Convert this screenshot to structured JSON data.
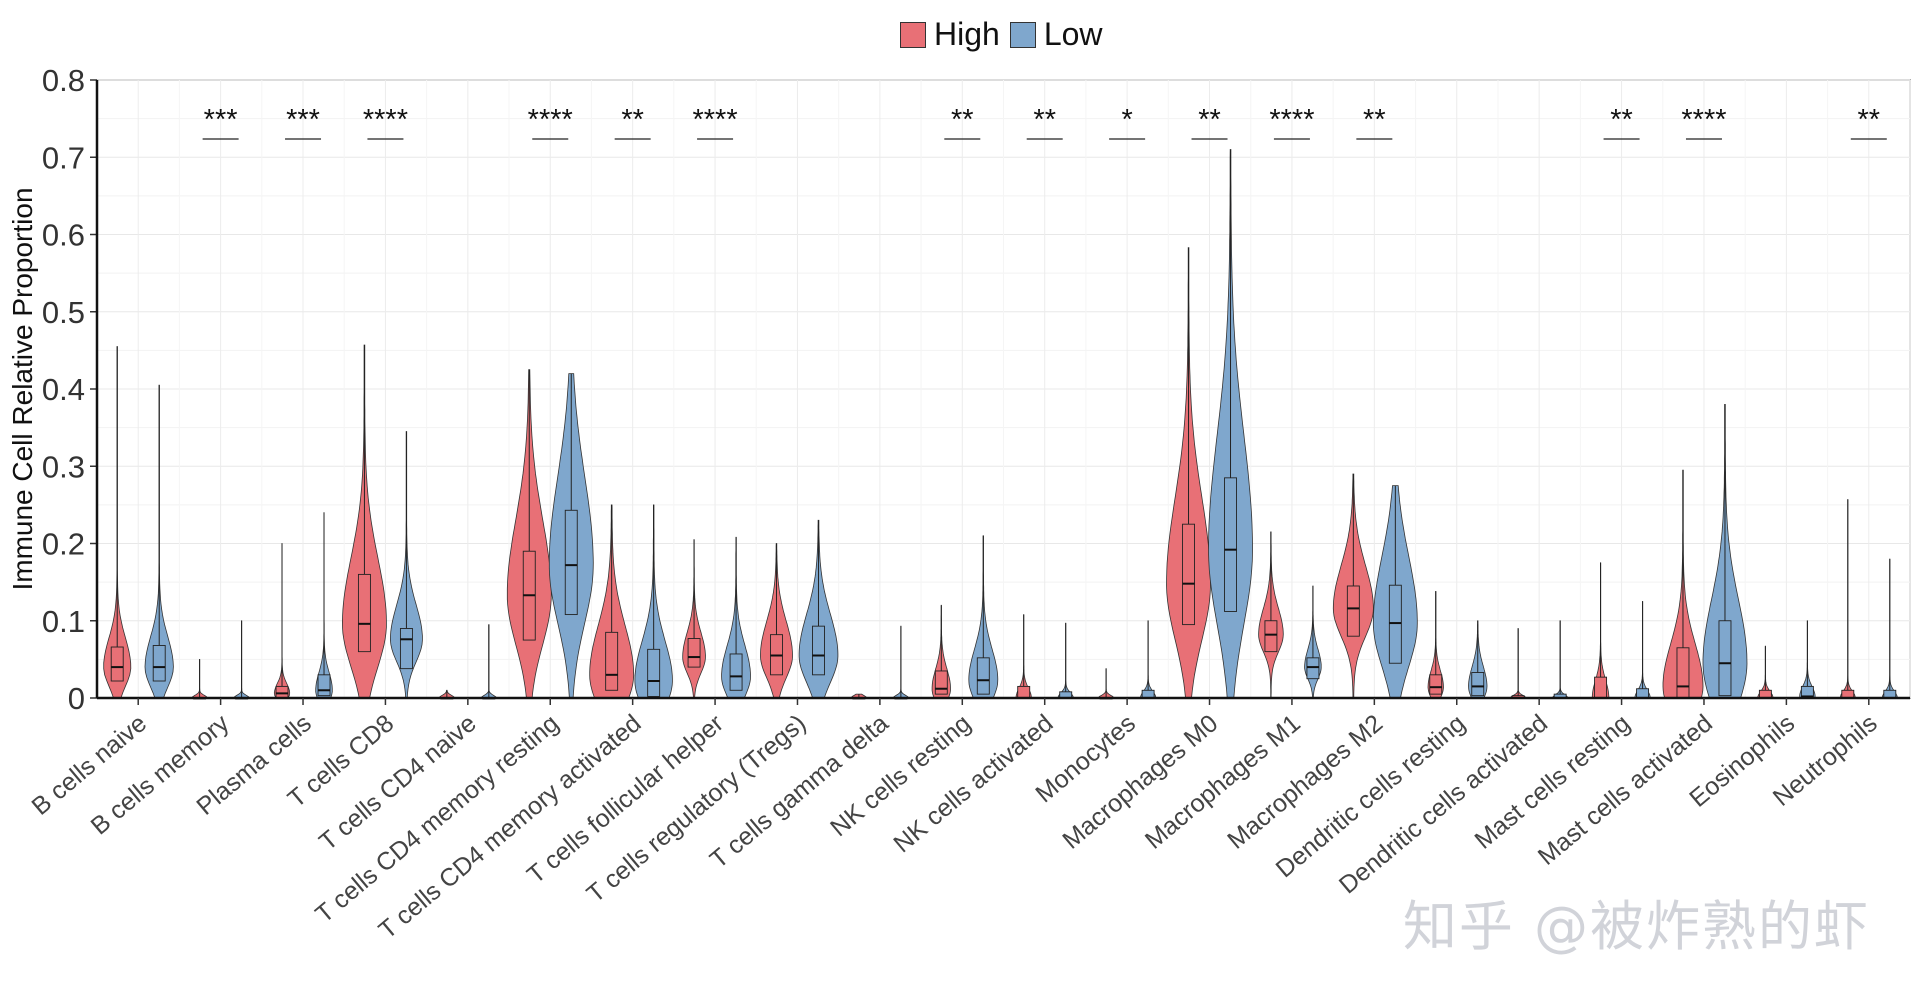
{
  "chart_data": {
    "type": "violin",
    "ylabel": "Immune Cell Relative Proportion",
    "ylim": [
      0,
      0.8
    ],
    "yticks": [
      "0",
      "0.1",
      "0.2",
      "0.3",
      "0.4",
      "0.5",
      "0.6",
      "0.7",
      "0.8"
    ],
    "legend": {
      "position": "top-center",
      "entries": [
        {
          "name": "High",
          "color": "#e87076"
        },
        {
          "name": "Low",
          "color": "#7fa7cd"
        }
      ]
    },
    "categories": [
      "B cells naive",
      "B cells memory",
      "Plasma cells",
      "T cells CD8",
      "T cells CD4 naive",
      "T cells CD4 memory resting",
      "T cells CD4 memory activated",
      "T cells follicular helper",
      "T cells regulatory (Tregs)",
      "T cells gamma delta",
      "NK cells resting",
      "NK cells activated",
      "Monocytes",
      "Macrophages M0",
      "Macrophages M1",
      "Macrophages M2",
      "Dendritic cells resting",
      "Dendritic cells activated",
      "Mast cells resting",
      "Mast cells activated",
      "Eosinophils",
      "Neutrophils"
    ],
    "significance": [
      "",
      "***",
      "***",
      "****",
      "",
      "****",
      "**",
      "****",
      "",
      "",
      "**",
      "**",
      "*",
      "**",
      "****",
      "**",
      "",
      "",
      "**",
      "****",
      "",
      "**"
    ],
    "series": [
      {
        "name": "High",
        "color": "#e87076",
        "max": [
          0.455,
          0.05,
          0.2,
          0.457,
          0.01,
          0.425,
          0.25,
          0.205,
          0.2,
          0.005,
          0.12,
          0.108,
          0.038,
          0.583,
          0.215,
          0.29,
          0.138,
          0.09,
          0.175,
          0.295,
          0.067,
          0.257
        ],
        "q1": [
          0.022,
          0.0,
          0.0,
          0.06,
          0.0,
          0.075,
          0.01,
          0.04,
          0.03,
          0.0,
          0.005,
          0.0,
          0.0,
          0.095,
          0.06,
          0.08,
          0.005,
          0.0,
          0.0,
          0.0,
          0.0,
          0.0
        ],
        "median": [
          0.04,
          0.0,
          0.006,
          0.096,
          0.0,
          0.133,
          0.03,
          0.053,
          0.055,
          0.0,
          0.012,
          0.0,
          0.0,
          0.148,
          0.082,
          0.116,
          0.014,
          0.0,
          0.0,
          0.015,
          0.0,
          0.0
        ],
        "q3": [
          0.066,
          0.0,
          0.015,
          0.16,
          0.0,
          0.19,
          0.085,
          0.077,
          0.082,
          0.0,
          0.035,
          0.015,
          0.0,
          0.225,
          0.1,
          0.145,
          0.03,
          0.003,
          0.027,
          0.065,
          0.01,
          0.01
        ]
      },
      {
        "name": "Low",
        "color": "#7fa7cd",
        "max": [
          0.405,
          0.1,
          0.24,
          0.345,
          0.095,
          0.42,
          0.25,
          0.208,
          0.23,
          0.093,
          0.21,
          0.097,
          0.1,
          0.71,
          0.145,
          0.275,
          0.1,
          0.1,
          0.125,
          0.38,
          0.1,
          0.18
        ],
        "q1": [
          0.022,
          0.0,
          0.003,
          0.038,
          0.0,
          0.108,
          0.002,
          0.01,
          0.03,
          0.0,
          0.005,
          0.0,
          0.0,
          0.112,
          0.025,
          0.045,
          0.003,
          0.0,
          0.0,
          0.003,
          0.0,
          0.0
        ],
        "median": [
          0.04,
          0.0,
          0.01,
          0.076,
          0.0,
          0.172,
          0.022,
          0.028,
          0.055,
          0.0,
          0.023,
          0.0,
          0.0,
          0.192,
          0.04,
          0.097,
          0.015,
          0.0,
          0.0,
          0.045,
          0.002,
          0.0
        ],
        "q3": [
          0.068,
          0.0,
          0.03,
          0.09,
          0.0,
          0.243,
          0.063,
          0.057,
          0.093,
          0.0,
          0.052,
          0.008,
          0.01,
          0.285,
          0.052,
          0.146,
          0.033,
          0.005,
          0.012,
          0.1,
          0.015,
          0.01
        ]
      }
    ]
  },
  "watermark": "知乎 @被炸熟的虾"
}
